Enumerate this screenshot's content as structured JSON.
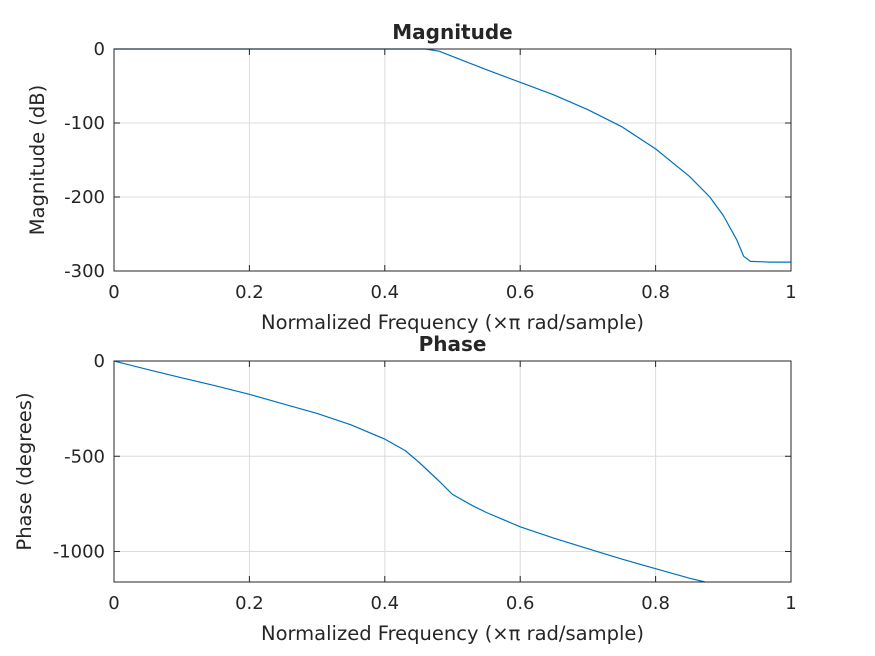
{
  "chart_data": [
    {
      "type": "line",
      "title": "Magnitude",
      "xlabel": "Normalized Frequency  (×π rad/sample)",
      "ylabel": "Magnitude (dB)",
      "xlim": [
        0,
        1
      ],
      "ylim": [
        -300,
        0
      ],
      "xticks": [
        0,
        0.2,
        0.4,
        0.6,
        0.8,
        1
      ],
      "xtick_labels": [
        "0",
        "0.2",
        "0.4",
        "0.6",
        "0.8",
        "1"
      ],
      "yticks": [
        -300,
        -200,
        -100,
        0
      ],
      "ytick_labels": [
        "-300",
        "-200",
        "-100",
        "0"
      ],
      "grid": true,
      "series": [
        {
          "color": "#0072BD",
          "x": [
            0,
            0.1,
            0.2,
            0.3,
            0.4,
            0.46,
            0.48,
            0.5,
            0.55,
            0.6,
            0.65,
            0.7,
            0.75,
            0.8,
            0.85,
            0.88,
            0.9,
            0.92,
            0.93,
            0.94,
            0.97,
            1.0
          ],
          "y": [
            0,
            0,
            0,
            0,
            0,
            0,
            -3,
            -10,
            -28,
            -45,
            -62,
            -82,
            -105,
            -135,
            -172,
            -200,
            -225,
            -258,
            -280,
            -287,
            -288,
            -288
          ]
        }
      ]
    },
    {
      "type": "line",
      "title": "Phase",
      "xlabel": "Normalized Frequency  (×π rad/sample)",
      "ylabel": "Phase (degrees)",
      "xlim": [
        0,
        1
      ],
      "ylim": [
        -1160,
        0
      ],
      "xticks": [
        0,
        0.2,
        0.4,
        0.6,
        0.8,
        1
      ],
      "xtick_labels": [
        "0",
        "0.2",
        "0.4",
        "0.6",
        "0.8",
        "1"
      ],
      "yticks": [
        -1000,
        -500,
        0
      ],
      "ytick_labels": [
        "-1000",
        "-500",
        "0"
      ],
      "grid": true,
      "series": [
        {
          "color": "#0072BD",
          "x": [
            0,
            0.05,
            0.1,
            0.15,
            0.2,
            0.25,
            0.3,
            0.35,
            0.4,
            0.43,
            0.45,
            0.48,
            0.5,
            0.53,
            0.55,
            0.6,
            0.65,
            0.7,
            0.75,
            0.8,
            0.85,
            0.873
          ],
          "y": [
            0,
            -45,
            -88,
            -130,
            -175,
            -225,
            -275,
            -335,
            -410,
            -470,
            -530,
            -630,
            -700,
            -760,
            -795,
            -870,
            -930,
            -985,
            -1040,
            -1090,
            -1140,
            -1160
          ]
        }
      ]
    }
  ]
}
